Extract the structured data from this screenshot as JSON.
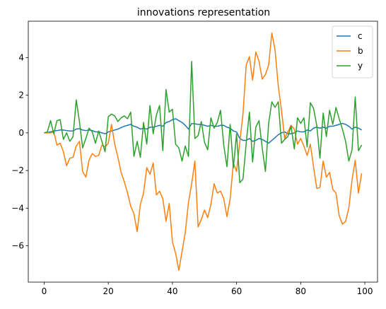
{
  "chart_data": {
    "type": "line",
    "title": "innovations representation",
    "x": [
      0,
      1,
      2,
      3,
      4,
      5,
      6,
      7,
      8,
      9,
      10,
      11,
      12,
      13,
      14,
      15,
      16,
      17,
      18,
      19,
      20,
      21,
      22,
      23,
      24,
      25,
      26,
      27,
      28,
      29,
      30,
      31,
      32,
      33,
      34,
      35,
      36,
      37,
      38,
      39,
      40,
      41,
      42,
      43,
      44,
      45,
      46,
      47,
      48,
      49,
      50,
      51,
      52,
      53,
      54,
      55,
      56,
      57,
      58,
      59,
      60,
      61,
      62,
      63,
      64,
      65,
      66,
      67,
      68,
      69,
      70,
      71,
      72,
      73,
      74,
      75,
      76,
      77,
      78,
      79,
      80,
      81,
      82,
      83,
      84,
      85,
      86,
      87,
      88,
      89,
      90,
      91,
      92,
      93,
      94,
      95,
      96,
      97,
      98,
      99
    ],
    "series": [
      {
        "name": "c",
        "color": "#1f77b4",
        "values": [
          0,
          0.02,
          0.05,
          0.1,
          0.12,
          0.15,
          0.15,
          0.12,
          0.1,
          0.1,
          0.2,
          0.22,
          0.15,
          0.12,
          0.15,
          0.12,
          0.05,
          0.05,
          0,
          -0.05,
          0.05,
          0.1,
          0.15,
          0.2,
          0.28,
          0.35,
          0.4,
          0.45,
          0.35,
          0.3,
          0.2,
          0.25,
          0.2,
          0.3,
          0.3,
          0.35,
          0.4,
          0.35,
          0.55,
          0.6,
          0.7,
          0.75,
          0.65,
          0.55,
          0.4,
          0.2,
          0.5,
          0.48,
          0.45,
          0.45,
          0.4,
          0.35,
          0.4,
          0.35,
          0.35,
          0.4,
          0.4,
          0.3,
          0.25,
          0.1,
          0.05,
          -0.3,
          -0.4,
          -0.4,
          -0.3,
          -0.45,
          -0.4,
          -0.3,
          -0.35,
          -0.45,
          -0.55,
          -0.4,
          -0.25,
          -0.1,
          0,
          0.05,
          -0.05,
          -0.05,
          0,
          0.1,
          0.05,
          0.05,
          0.15,
          0.1,
          0.25,
          0.3,
          0.25,
          0.3,
          0.25,
          0.35,
          0.35,
          0.4,
          0.45,
          0.5,
          0.45,
          0.35,
          0.2,
          0.3,
          0.25,
          0.15
        ]
      },
      {
        "name": "b",
        "color": "#ff7f0e",
        "values": [
          0,
          0,
          0,
          0.05,
          -0.65,
          -0.55,
          -1.0,
          -1.75,
          -1.35,
          -1.3,
          -0.7,
          -0.45,
          -2.05,
          -2.35,
          -1.45,
          -1.1,
          -1.25,
          -1.2,
          -0.65,
          -0.75,
          -0.55,
          0.45,
          -0.6,
          -1.3,
          -2.1,
          -2.6,
          -3.2,
          -3.9,
          -4.3,
          -5.25,
          -3.8,
          -3.2,
          -1.85,
          -2.2,
          -1.6,
          -3.3,
          -3.1,
          -3.5,
          -4.7,
          -3.75,
          -5.8,
          -6.4,
          -7.3,
          -6.3,
          -5.3,
          -3.7,
          -2.7,
          -1.5,
          -5.0,
          -4.6,
          -4.1,
          -4.5,
          -3.8,
          -2.7,
          -3.2,
          -3.1,
          -3.5,
          -4.45,
          -3.5,
          -1.6,
          -2.05,
          -0.5,
          1.0,
          3.6,
          4.05,
          2.8,
          4.3,
          3.8,
          2.85,
          3.1,
          3.6,
          5.3,
          4.4,
          2.5,
          1.2,
          -0.3,
          0.05,
          0.4,
          0.2,
          -0.6,
          -0.3,
          -0.7,
          -1.2,
          -0.6,
          -1.8,
          -2.95,
          -2.9,
          -1.5,
          -2.35,
          -2.1,
          -3.0,
          -3.2,
          -4.4,
          -4.85,
          -4.7,
          -4.0,
          -2.5,
          -1.45,
          -3.2,
          -2.15
        ]
      },
      {
        "name": "y",
        "color": "#2ca02c",
        "values": [
          0,
          0.05,
          0.65,
          -0.05,
          0.65,
          0.7,
          -0.35,
          0,
          -0.45,
          -0.2,
          1.75,
          0.6,
          -0.8,
          -0.3,
          0.25,
          0.05,
          -0.55,
          0.1,
          -0.45,
          -1.0,
          0.85,
          1.0,
          0.9,
          0.6,
          0.8,
          0.9,
          0.75,
          1.1,
          -1.25,
          -0.45,
          -1.3,
          0.55,
          -0.6,
          1.45,
          -0.05,
          0.95,
          1.45,
          -0.95,
          2.3,
          1.1,
          1.25,
          -0.6,
          -0.8,
          -1.5,
          -0.7,
          -1.25,
          3.8,
          -0.3,
          -0.15,
          0.6,
          -0.5,
          -0.9,
          0.8,
          0.25,
          0.55,
          1.2,
          -0.65,
          -1.8,
          0.45,
          -1.85,
          -0.05,
          -2.65,
          -2.45,
          -0.55,
          1.1,
          -1.55,
          0.3,
          0.65,
          -0.8,
          -2.05,
          0.5,
          1.65,
          1.35,
          1.65,
          -0.55,
          -0.35,
          -0.2,
          0.35,
          -0.85,
          0.8,
          0.5,
          0.8,
          -0.75,
          1.6,
          1.3,
          0.4,
          -1.35,
          1.05,
          -0.2,
          1.2,
          0.45,
          1.35,
          0.75,
          0.2,
          -0.45,
          -1.5,
          -0.9,
          1.9,
          -0.95,
          -0.65
        ]
      }
    ],
    "xlim": [
      -4.95,
      103.95
    ],
    "ylim": [
      -7.93,
      5.93
    ],
    "xticks": [
      0,
      20,
      40,
      60,
      80,
      100
    ],
    "yticks": [
      {
        "value": -6,
        "label": "−6"
      },
      {
        "value": -4,
        "label": "−4"
      },
      {
        "value": -2,
        "label": "−2"
      },
      0,
      2,
      4
    ],
    "legend": "upper right"
  }
}
